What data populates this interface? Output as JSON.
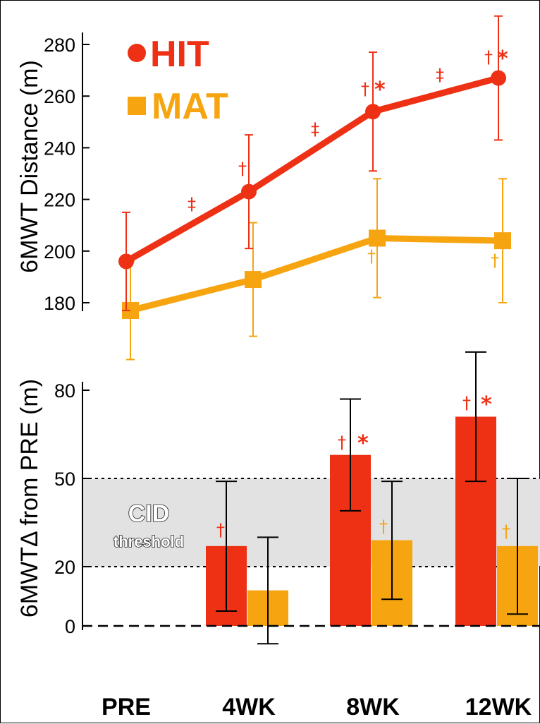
{
  "chart_data": [
    {
      "type": "line",
      "ylabel": "6MWT Distance (m)",
      "ylim": [
        175,
        291
      ],
      "yticks": [
        "180",
        "200",
        "220",
        "240",
        "260",
        "280"
      ],
      "categories": [
        "PRE",
        "4WK",
        "8WK",
        "12WK"
      ],
      "series": [
        {
          "name": "HIT",
          "color": "#ee3014",
          "marker": "circle",
          "values": [
            196,
            223,
            254,
            267
          ],
          "err": [
            19,
            22,
            23,
            24
          ]
        },
        {
          "name": "MAT",
          "color": "#f6a511",
          "marker": "square",
          "values": [
            177,
            189,
            205,
            204
          ],
          "err": [
            19,
            22,
            23,
            24
          ]
        }
      ],
      "annotations": {
        "dagger": "†",
        "double_dagger": "‡",
        "star": "*"
      }
    },
    {
      "type": "bar",
      "ylabel": "6MWTΔ from PRE (m)",
      "ylim": [
        0,
        80
      ],
      "yticks": [
        "0",
        "20",
        "50",
        "80"
      ],
      "categories": [
        "PRE",
        "4WK",
        "8WK",
        "12WK"
      ],
      "series": [
        {
          "name": "HIT",
          "color": "#ee3014",
          "values": [
            0,
            27,
            58,
            71
          ],
          "err": [
            0,
            22,
            19,
            22
          ]
        },
        {
          "name": "MAT",
          "color": "#f6a511",
          "values": [
            0,
            12,
            29,
            27
          ],
          "err": [
            0,
            18,
            20,
            23
          ]
        }
      ],
      "band": {
        "from": 20,
        "to": 50,
        "label": "CID",
        "sublabel": "threshold"
      }
    }
  ]
}
